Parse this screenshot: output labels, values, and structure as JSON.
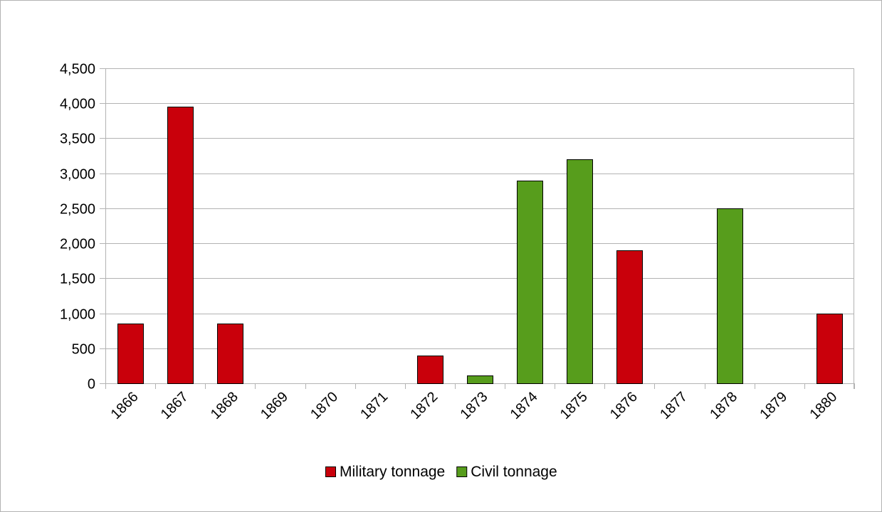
{
  "chart_data": {
    "type": "bar",
    "categories": [
      "1866",
      "1867",
      "1868",
      "1869",
      "1870",
      "1871",
      "1872",
      "1873",
      "1874",
      "1875",
      "1876",
      "1877",
      "1878",
      "1879",
      "1880"
    ],
    "series": [
      {
        "name": "Military tonnage",
        "color": "#c9000b",
        "values": [
          850,
          3950,
          850,
          0,
          0,
          0,
          400,
          0,
          0,
          0,
          1900,
          0,
          0,
          0,
          1000
        ]
      },
      {
        "name": "Civil tonnage",
        "color": "#579d1c",
        "values": [
          0,
          0,
          0,
          0,
          0,
          0,
          0,
          110,
          2900,
          3200,
          0,
          0,
          2500,
          0,
          0
        ]
      }
    ],
    "title": "",
    "xlabel": "",
    "ylabel": "",
    "ylim": [
      0,
      4500
    ],
    "yticks": [
      0,
      500,
      1000,
      1500,
      2000,
      2500,
      3000,
      3500,
      4000,
      4500
    ],
    "ytick_labels": [
      "0",
      "500",
      "1,000",
      "1,500",
      "2,000",
      "2,500",
      "3,000",
      "3,500",
      "4,000",
      "4,500"
    ],
    "grid": true,
    "legend": "bottom-center",
    "stacked": true
  }
}
